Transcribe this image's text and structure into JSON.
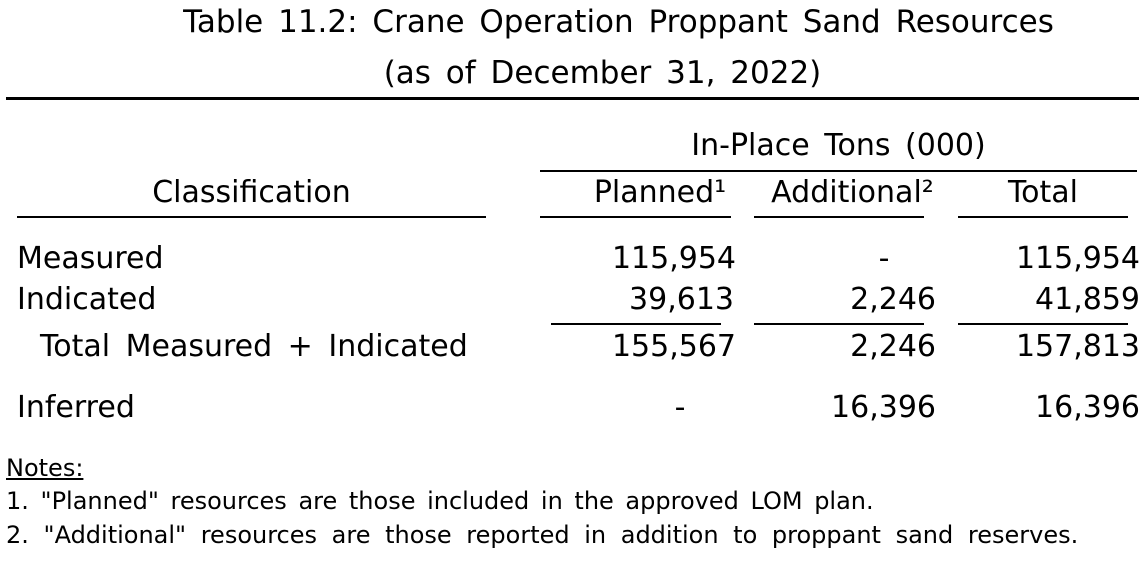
{
  "title": {
    "line1": "Table 11.2: Crane Operation Proppant Sand Resources",
    "line2": "(as of December 31, 2022)"
  },
  "header": {
    "group_label": "In-Place Tons (000)",
    "classification": "Classification",
    "columns": [
      "Planned¹",
      "Additional²",
      "Total"
    ]
  },
  "rows": [
    {
      "label": "Measured",
      "planned": "115,954",
      "additional": "-",
      "total": "115,954"
    },
    {
      "label": "Indicated",
      "planned": "39,613",
      "additional": "2,246",
      "total": "41,859"
    },
    {
      "label": "Total Measured + Indicated",
      "planned": "155,567",
      "additional": "2,246",
      "total": "157,813"
    },
    {
      "label": "Inferred",
      "planned": "-",
      "additional": "16,396",
      "total": "16,396"
    }
  ],
  "notes": {
    "heading": "Notes:",
    "items": [
      "1. \"Planned\" resources are those included in the approved LOM plan.",
      "2. \"Additional\" resources are those reported in addition to proppant sand reserves."
    ]
  }
}
